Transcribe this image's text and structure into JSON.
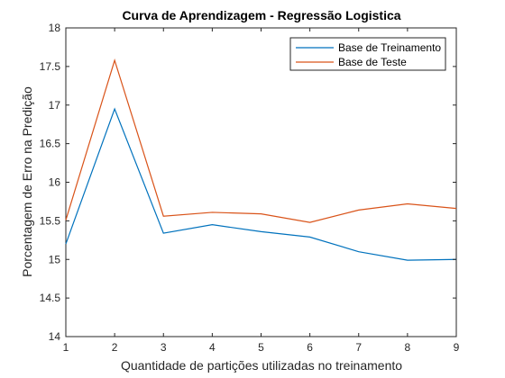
{
  "chart_data": {
    "type": "line",
    "title": "Curva de Aprendizagem - Regressão Logistica",
    "xlabel": "Quantidade de partições utilizadas no treinamento",
    "ylabel": "Porcentagem de Erro na Predição",
    "x": [
      1,
      2,
      3,
      4,
      5,
      6,
      7,
      8,
      9
    ],
    "xlim": [
      1,
      9
    ],
    "ylim": [
      14,
      18
    ],
    "xticks": [
      1,
      2,
      3,
      4,
      5,
      6,
      7,
      8,
      9
    ],
    "yticks": [
      14,
      14.5,
      15,
      15.5,
      16,
      16.5,
      17,
      17.5,
      18
    ],
    "xtick_labels": [
      "1",
      "2",
      "3",
      "4",
      "5",
      "6",
      "7",
      "8",
      "9"
    ],
    "ytick_labels": [
      "14",
      "14.5",
      "15",
      "15.5",
      "16",
      "16.5",
      "17",
      "17.5",
      "18"
    ],
    "grid": false,
    "legend_position": "top-right",
    "series": [
      {
        "name": "Base de Treinamento",
        "color": "#0072BD",
        "values": [
          15.2,
          16.95,
          15.34,
          15.45,
          15.36,
          15.29,
          15.1,
          14.99,
          15.0
        ]
      },
      {
        "name": "Base de Teste",
        "color": "#D95319",
        "values": [
          15.51,
          17.58,
          15.56,
          15.61,
          15.59,
          15.48,
          15.64,
          15.72,
          15.66
        ]
      }
    ]
  }
}
